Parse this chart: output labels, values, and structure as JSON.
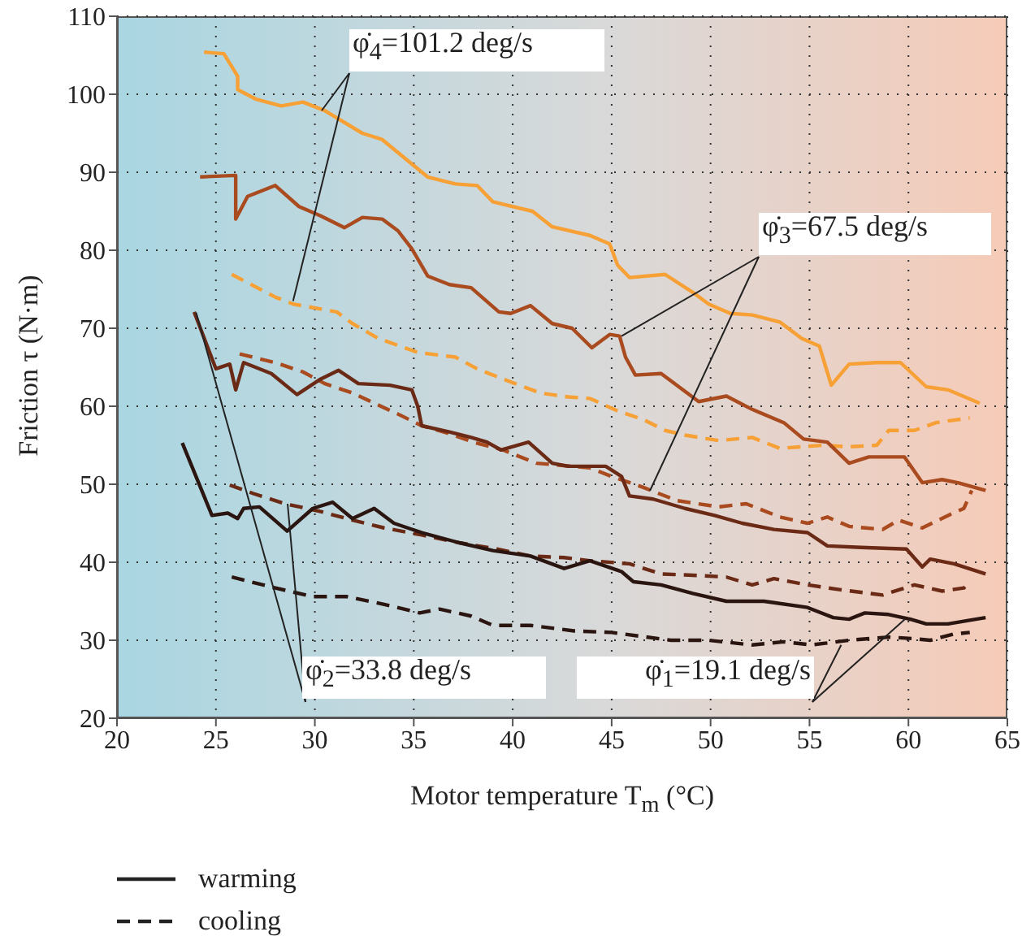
{
  "chart_data": {
    "type": "line",
    "xlabel": "Motor temperature T$_{m}$ (°C)",
    "ylabel": "Friction τ (N·m)",
    "xlim": [
      20,
      65
    ],
    "xticks": [
      20,
      25,
      30,
      35,
      40,
      45,
      50,
      55,
      60,
      65
    ],
    "ylim": [
      20,
      110
    ],
    "yticks": [
      20,
      30,
      40,
      50,
      60,
      70,
      80,
      90,
      100,
      110
    ],
    "grid": true,
    "marker": "none",
    "annotations": [
      {
        "text": "φ̇$_{4}$=101.2 deg/s",
        "x": 28.9,
        "y": 73.5
      },
      {
        "text": "φ̇$_{3}$=67.5 deg/s",
        "x": 45.5,
        "y": 69.0
      },
      {
        "text": "φ̇$_{2}$=33.8 deg/s",
        "x": 24.0,
        "y": 72.0
      },
      {
        "text": "φ̇$_{1}$=19.1 deg/s",
        "x": 56.6,
        "y": 29.4
      },
      "warming",
      "cooling"
    ],
    "series": [
      {
        "color": "#f7a035",
        "line_style": "solid",
        "x": [
          24.4,
          25.4,
          26.1,
          26.1,
          27.0,
          28.3,
          29.4,
          30.5,
          32.4,
          33.4,
          34.5,
          35.7,
          37.1,
          38.2,
          39.0,
          41.0,
          42.0,
          43.9,
          44.9,
          45.3,
          45.9,
          47.7,
          49.1,
          49.9,
          51.0,
          52.1,
          53.5,
          54.6,
          55.5,
          56.1,
          57.0,
          58.4,
          59.6,
          60.9,
          62.0,
          63.6
        ],
        "values": [
          105.4,
          105.2,
          102.3,
          100.6,
          99.4,
          98.5,
          99.0,
          97.9,
          95.0,
          94.2,
          91.9,
          89.4,
          88.5,
          88.3,
          86.2,
          85.0,
          83.0,
          81.9,
          80.8,
          78.1,
          76.5,
          76.9,
          74.6,
          73.1,
          71.9,
          71.7,
          70.8,
          68.7,
          67.7,
          62.7,
          65.4,
          65.6,
          65.6,
          62.5,
          62.1,
          60.4
        ]
      },
      {
        "color": "#f7a035",
        "line_style": "dashed",
        "x": [
          25.8,
          28.0,
          28.9,
          31.1,
          31.9,
          33.2,
          35.2,
          37.1,
          38.2,
          39.5,
          41.4,
          42.8,
          43.9,
          45.3,
          46.6,
          47.7,
          48.7,
          50.4,
          52.1,
          53.5,
          54.6,
          55.7,
          57.0,
          58.4,
          59.0,
          60.3,
          61.4,
          63.1
        ],
        "values": [
          76.9,
          74.0,
          73.1,
          72.1,
          70.6,
          68.7,
          66.9,
          66.3,
          64.8,
          63.5,
          61.7,
          61.2,
          61.0,
          59.4,
          58.3,
          56.9,
          56.3,
          55.6,
          56.0,
          54.6,
          54.8,
          55.0,
          54.8,
          55.0,
          56.9,
          56.9,
          57.9,
          58.5
        ]
      },
      {
        "color": "#a94a1f",
        "line_style": "solid",
        "x": [
          24.2,
          26.0,
          26.0,
          26.6,
          28.0,
          29.2,
          30.3,
          31.5,
          32.4,
          33.4,
          34.2,
          34.9,
          35.7,
          36.8,
          37.9,
          39.3,
          39.9,
          40.9,
          42.0,
          43.0,
          44.0,
          44.9,
          45.4,
          45.7,
          46.2,
          47.5,
          49.4,
          50.8,
          52.1,
          53.7,
          54.7,
          55.9,
          57.0,
          58.0,
          59.8,
          60.7,
          61.7,
          62.5,
          63.9
        ],
        "values": [
          89.4,
          89.6,
          84.0,
          86.9,
          88.3,
          85.6,
          84.4,
          82.9,
          84.2,
          84.0,
          82.5,
          80.2,
          76.7,
          75.6,
          75.2,
          72.1,
          71.9,
          72.9,
          70.6,
          70.0,
          67.5,
          69.2,
          69.0,
          66.3,
          64.0,
          64.2,
          60.6,
          61.3,
          59.6,
          57.9,
          55.8,
          55.4,
          52.7,
          53.5,
          53.5,
          50.2,
          50.6,
          50.2,
          49.2
        ]
      },
      {
        "color": "#a94a1f",
        "line_style": "dashed",
        "x": [
          26.2,
          28.0,
          29.4,
          30.5,
          31.9,
          33.0,
          34.2,
          35.4,
          36.8,
          38.0,
          39.5,
          41.2,
          43.9,
          45.0,
          46.6,
          48.3,
          50.4,
          51.8,
          53.5,
          54.9,
          55.9,
          57.0,
          58.7,
          59.5,
          60.7,
          62.0,
          62.8,
          63.2
        ],
        "values": [
          66.7,
          65.6,
          64.4,
          62.9,
          61.7,
          60.4,
          59.0,
          57.5,
          56.5,
          55.4,
          54.4,
          52.7,
          52.1,
          51.0,
          49.6,
          47.9,
          47.1,
          47.5,
          45.8,
          45.0,
          45.8,
          44.6,
          44.2,
          45.4,
          44.4,
          46.0,
          46.9,
          49.2
        ]
      },
      {
        "color": "#6b2a15",
        "line_style": "solid",
        "x": [
          23.9,
          25.0,
          25.7,
          26.0,
          26.4,
          27.8,
          29.1,
          30.3,
          31.2,
          32.2,
          33.8,
          34.9,
          35.2,
          35.4,
          36.8,
          37.9,
          38.7,
          39.4,
          40.8,
          42.0,
          42.8,
          44.7,
          45.5,
          45.9,
          47.1,
          48.7,
          50.2,
          51.6,
          53.2,
          54.9,
          55.9,
          57.6,
          59.9,
          60.7,
          61.1,
          62.3,
          63.9
        ],
        "values": [
          72.1,
          64.8,
          65.4,
          62.1,
          65.6,
          64.2,
          61.5,
          63.5,
          64.6,
          62.9,
          62.7,
          62.1,
          60.0,
          57.5,
          56.7,
          56.0,
          55.4,
          54.4,
          55.4,
          52.7,
          52.3,
          52.3,
          51.0,
          48.5,
          48.1,
          46.9,
          46.0,
          45.0,
          44.2,
          43.8,
          42.1,
          41.9,
          41.7,
          39.4,
          40.4,
          39.8,
          38.5
        ]
      },
      {
        "color": "#6b2a15",
        "line_style": "dashed",
        "x": [
          25.7,
          26.9,
          28.5,
          30.3,
          31.9,
          33.5,
          35.4,
          37.3,
          39.2,
          40.9,
          42.6,
          43.9,
          45.9,
          47.5,
          49.4,
          50.8,
          52.1,
          53.2,
          54.9,
          56.5,
          58.7,
          60.3,
          61.7,
          62.8,
          63.1
        ],
        "values": [
          49.9,
          48.8,
          47.5,
          46.5,
          45.4,
          44.4,
          43.5,
          42.5,
          41.7,
          40.8,
          40.6,
          40.2,
          39.8,
          38.5,
          38.3,
          38.1,
          37.1,
          37.9,
          37.1,
          36.5,
          35.8,
          37.1,
          36.3,
          36.7,
          37.5
        ]
      },
      {
        "color": "#2b1510",
        "line_style": "solid",
        "x": [
          23.3,
          24.8,
          25.6,
          26.1,
          26.4,
          27.2,
          28.6,
          29.9,
          30.9,
          31.9,
          33.0,
          34.0,
          35.4,
          37.3,
          39.0,
          40.9,
          42.6,
          43.9,
          45.5,
          46.1,
          47.5,
          49.1,
          50.8,
          52.7,
          54.9,
          56.2,
          57.0,
          57.8,
          59.0,
          60.1,
          60.9,
          62.0,
          63.9
        ],
        "values": [
          55.3,
          46.0,
          46.3,
          45.6,
          46.9,
          47.1,
          44.0,
          46.9,
          47.7,
          45.6,
          46.9,
          45.0,
          43.8,
          42.5,
          41.5,
          40.8,
          39.2,
          40.2,
          38.8,
          37.5,
          37.1,
          36.0,
          35.0,
          35.0,
          34.2,
          32.9,
          32.7,
          33.5,
          33.3,
          32.7,
          32.1,
          32.1,
          32.9
        ]
      },
      {
        "color": "#2b1510",
        "line_style": "dashed",
        "x": [
          25.8,
          28.0,
          29.9,
          31.6,
          33.5,
          35.3,
          36.3,
          37.9,
          39.0,
          40.9,
          43.1,
          45.0,
          48.0,
          49.9,
          52.1,
          53.7,
          55.1,
          57.0,
          59.0,
          60.3,
          61.1,
          62.3,
          63.1
        ],
        "values": [
          38.1,
          36.7,
          35.6,
          35.6,
          34.6,
          33.5,
          34.0,
          33.1,
          31.9,
          31.9,
          31.2,
          31.0,
          30.0,
          30.0,
          29.4,
          29.8,
          29.4,
          30.0,
          30.4,
          30.2,
          30.0,
          30.8,
          31.0
        ]
      }
    ]
  }
}
